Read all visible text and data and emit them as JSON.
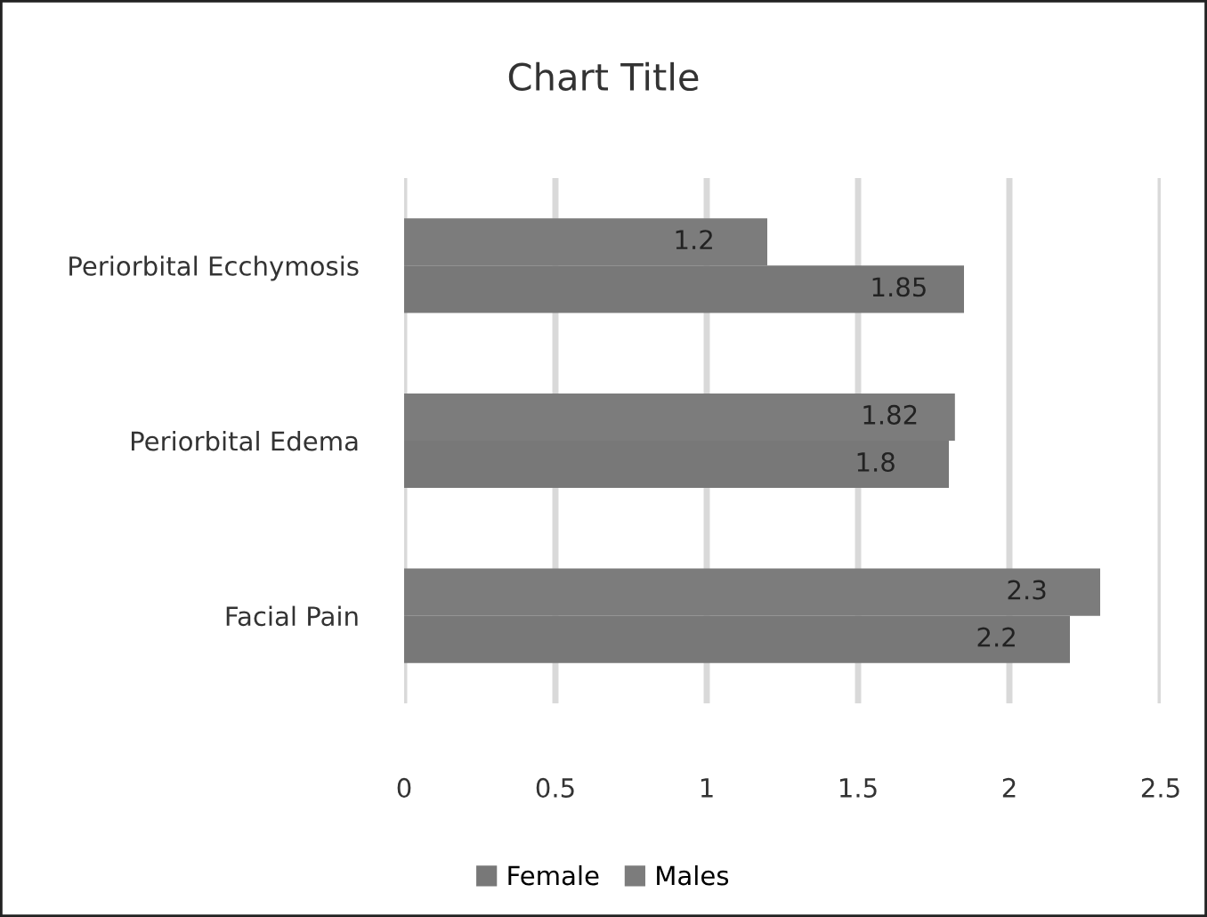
{
  "chart_data": {
    "type": "bar",
    "orientation": "horizontal",
    "title": "Chart Title",
    "categories": [
      "Periorbital Ecchymosis",
      "Periorbital Edema",
      "Facial Pain"
    ],
    "series": [
      {
        "name": "Female",
        "color": "#787878",
        "values": [
          1.85,
          1.8,
          2.2
        ]
      },
      {
        "name": "Males",
        "color": "#7c7c7c",
        "values": [
          1.2,
          1.82,
          2.3
        ]
      }
    ],
    "xlim": [
      0,
      2.5
    ],
    "xticks": [
      0,
      0.5,
      1,
      1.5,
      2,
      2.5
    ],
    "grid": "x",
    "legend": "bottom",
    "data_labels": true
  }
}
